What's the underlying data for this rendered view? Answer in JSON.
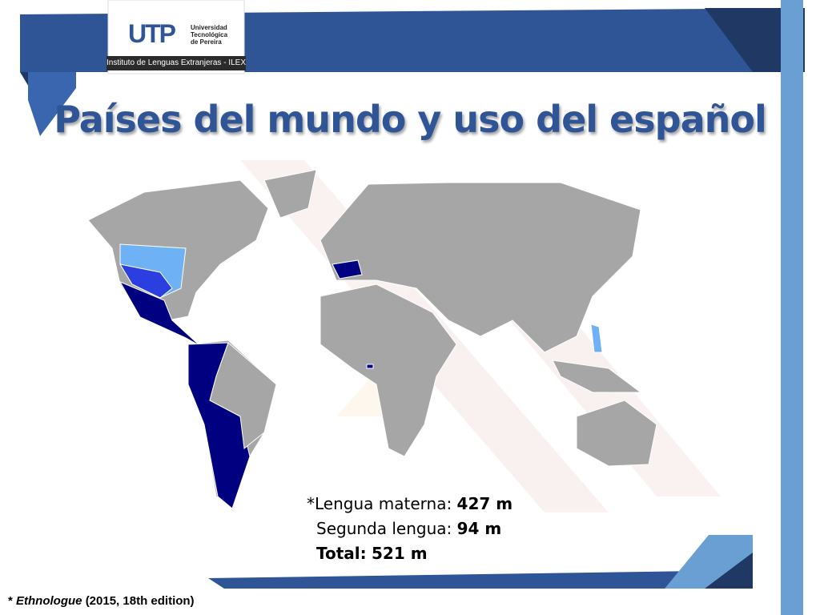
{
  "header": {
    "logo": {
      "mark": "UTP",
      "name": [
        "Universidad",
        "Tecnológica",
        "de Pereira"
      ]
    },
    "institute": "Instituto de Lenguas Extranjeras - ILEX"
  },
  "title": "Países del mundo y uso del español",
  "stats": [
    {
      "label": "*Lengua materna:",
      "value": "427 m"
    },
    {
      "label": "Segunda lengua:",
      "value": "94 m"
    },
    {
      "label": "Total:",
      "value": "521 m"
    }
  ],
  "footnote": {
    "marker": "*",
    "source": "Ethnologue",
    "detail": "(2015, 18th edition)"
  }
}
